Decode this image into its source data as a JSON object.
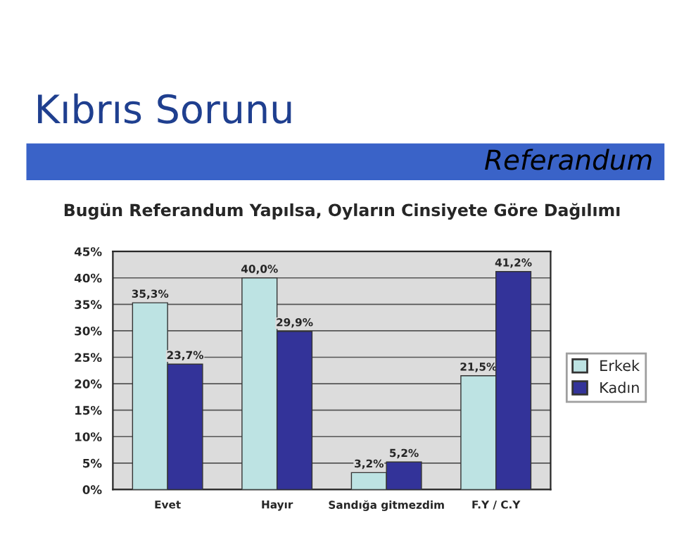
{
  "chart_data": {
    "type": "bar",
    "title": "Bugün Referandum Yapılsa, Oyların Cinsiyete Göre Dağılımı",
    "annotations": [
      "Kıbrıs Sorunu",
      "Referandum"
    ],
    "categories": [
      "Evet",
      "Hayır",
      "Sandığa gitmezdim",
      "F.Y / C.Y"
    ],
    "series": [
      {
        "name": "Erkek",
        "color": "#bde3e3",
        "values": [
          35.3,
          40.0,
          3.2,
          21.5
        ],
        "value_labels": [
          "35,3%",
          "40,0%",
          "3,2%",
          "21,5%"
        ]
      },
      {
        "name": "Kadın",
        "color": "#333399",
        "values": [
          23.7,
          29.9,
          5.2,
          41.2
        ],
        "value_labels": [
          "23,7%",
          "29,9%",
          "5,2%",
          "41,2%"
        ]
      }
    ],
    "ylim": [
      0,
      45
    ],
    "yticks": [
      {
        "value": 0,
        "label": "0%"
      },
      {
        "value": 5,
        "label": "5%"
      },
      {
        "value": 10,
        "label": "10%"
      },
      {
        "value": 15,
        "label": "15%"
      },
      {
        "value": 20,
        "label": "20%"
      },
      {
        "value": 25,
        "label": "25%"
      },
      {
        "value": 30,
        "label": "30%"
      },
      {
        "value": 35,
        "label": "35%"
      },
      {
        "value": 40,
        "label": "40%"
      },
      {
        "value": 45,
        "label": "45%"
      }
    ],
    "grid": "y",
    "legend": "right"
  }
}
